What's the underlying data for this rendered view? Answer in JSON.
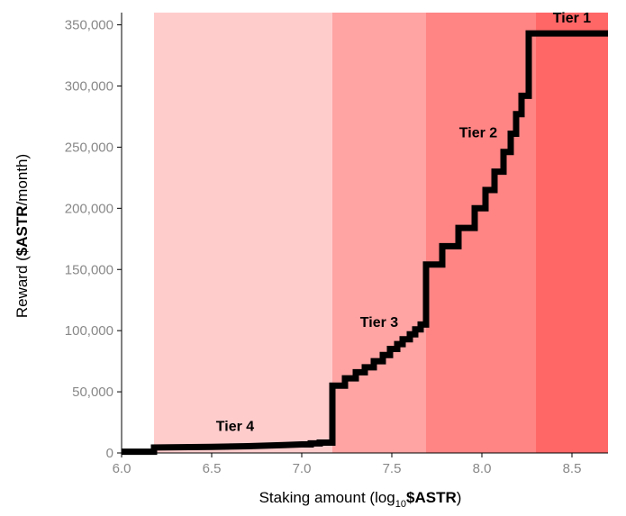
{
  "chart_data": {
    "type": "line",
    "xlabel": {
      "prefix": "Staking amount  (log",
      "sub": "10",
      "bold": "$ASTR",
      "suffix": ")"
    },
    "ylabel": {
      "prefix": "Reward (",
      "bold": "$ASTR",
      "suffix": "/month)"
    },
    "xlim": [
      6.0,
      8.7
    ],
    "ylim": [
      0,
      360000
    ],
    "xticks": [
      6.0,
      6.5,
      7.0,
      7.5,
      8.0,
      8.5
    ],
    "xtick_labels": [
      "6.0",
      "6.5",
      "7.0",
      "7.5",
      "8.0",
      "8.5"
    ],
    "yticks": [
      0,
      50000,
      100000,
      150000,
      200000,
      250000,
      300000,
      350000
    ],
    "ytick_labels": [
      "0",
      "50,000",
      "100,000",
      "150,000",
      "200,000",
      "250,000",
      "300,000",
      "350,000"
    ],
    "grid": false,
    "line_color": "#000000",
    "tiers": [
      {
        "label": "Tier 4",
        "x_start": 6.18,
        "x_end": 7.17,
        "color": "#ffcccc",
        "label_x": 6.63,
        "label_y": 18000
      },
      {
        "label": "Tier 3",
        "x_start": 7.17,
        "x_end": 7.69,
        "color": "#ffa3a3",
        "label_x": 7.43,
        "label_y": 103000
      },
      {
        "label": "Tier 2",
        "x_start": 7.69,
        "x_end": 8.3,
        "color": "#ff8484",
        "label_x": 7.98,
        "label_y": 258000
      },
      {
        "label": "Tier 1",
        "x_start": 8.3,
        "x_end": 8.7,
        "color": "#ff6767",
        "label_x": 8.5,
        "label_y": 352000
      }
    ],
    "series": [
      {
        "x": [
          6.0,
          6.18,
          6.18,
          6.5,
          6.7,
          6.9,
          7.0,
          7.05,
          7.05,
          7.1,
          7.1,
          7.17,
          7.17,
          7.24,
          7.24,
          7.3,
          7.3,
          7.35,
          7.35,
          7.4,
          7.4,
          7.45,
          7.45,
          7.49,
          7.49,
          7.53,
          7.53,
          7.56,
          7.56,
          7.6,
          7.6,
          7.63,
          7.63,
          7.66,
          7.66,
          7.69,
          7.69,
          7.78,
          7.78,
          7.87,
          7.87,
          7.96,
          7.96,
          8.02,
          8.02,
          8.07,
          8.07,
          8.12,
          8.12,
          8.16,
          8.16,
          8.19,
          8.19,
          8.22,
          8.22,
          8.26,
          8.26,
          8.3,
          8.3,
          8.7
        ],
        "y": [
          1000,
          1000,
          4500,
          5000,
          5500,
          6500,
          7000,
          7000,
          7800,
          7800,
          8500,
          8500,
          55000,
          55000,
          61000,
          61000,
          66000,
          66000,
          70000,
          70000,
          75000,
          75000,
          80000,
          80000,
          85000,
          85000,
          89000,
          89000,
          93000,
          93000,
          97000,
          97000,
          101000,
          101000,
          105000,
          105000,
          154000,
          154000,
          169000,
          169000,
          184000,
          184000,
          200000,
          200000,
          215000,
          215000,
          230000,
          230000,
          246000,
          246000,
          261000,
          261000,
          277000,
          277000,
          292000,
          292000,
          343000,
          343000,
          343000,
          343000
        ]
      }
    ]
  }
}
